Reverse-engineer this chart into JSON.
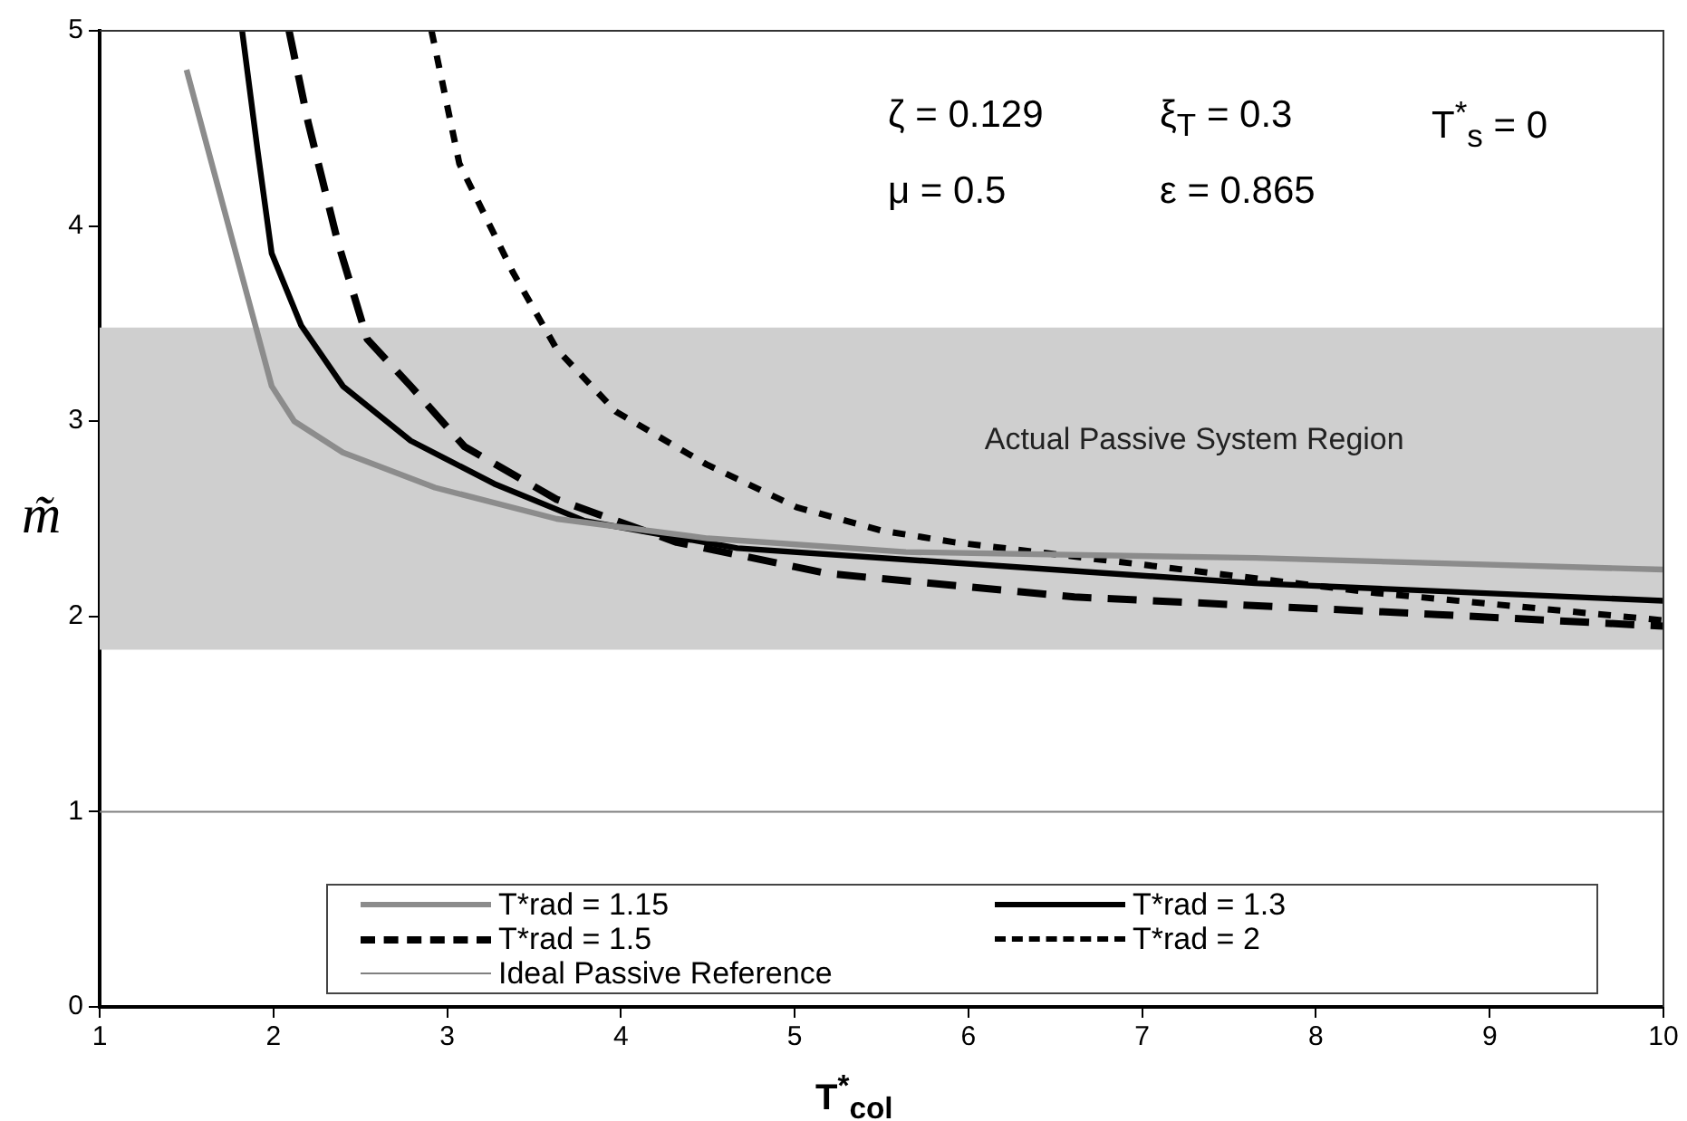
{
  "chart_data": {
    "type": "line",
    "xlabel": "T$^{*}$$_{col}$",
    "ylabel": "m̃",
    "xlim": [
      1,
      10
    ],
    "xticks": [
      1,
      2,
      3,
      4,
      5,
      6,
      7,
      8,
      9,
      10
    ],
    "ylim": [
      0,
      5
    ],
    "yticks": [
      0,
      1,
      2,
      3,
      4,
      5
    ],
    "grid": false,
    "legend": "bottom",
    "series": [
      {
        "name": "T*rad = 1.15",
        "color": "#8c8c8c",
        "line_style": "solid",
        "x": [
          1.5,
          1.99,
          2.12,
          2.4,
          2.93,
          3.63,
          4.5,
          5.64,
          7.65,
          10
        ],
        "values": [
          4.8,
          3.18,
          3.0,
          2.84,
          2.66,
          2.5,
          2.4,
          2.33,
          2.3,
          2.24
        ]
      },
      {
        "name": "T*rad = 1.3",
        "color": "#000000",
        "line_style": "solid",
        "x": [
          1.82,
          1.91,
          1.99,
          2.16,
          2.4,
          2.79,
          3.27,
          3.79,
          4.67,
          7.65,
          10
        ],
        "values": [
          5,
          4.38,
          3.86,
          3.49,
          3.18,
          2.9,
          2.68,
          2.49,
          2.35,
          2.17,
          2.08
        ]
      },
      {
        "name": "T*rad = 1.5",
        "color": "#000000",
        "line_style": "dashed",
        "x": [
          2.09,
          2.2,
          2.37,
          2.54,
          2.79,
          3.1,
          3.63,
          4.32,
          5.19,
          6.61,
          8.7,
          10
        ],
        "values": [
          5,
          4.53,
          3.92,
          3.42,
          3.18,
          2.87,
          2.6,
          2.38,
          2.22,
          2.1,
          2.01,
          1.95
        ]
      },
      {
        "name": "T*rad = 2",
        "color": "#000000",
        "line_style": "dotted",
        "x": [
          2.91,
          3.07,
          3.38,
          3.63,
          3.97,
          4.49,
          5.01,
          5.5,
          5.92,
          6.96,
          8.35,
          10
        ],
        "values": [
          5,
          4.32,
          3.76,
          3.37,
          3.05,
          2.78,
          2.56,
          2.44,
          2.38,
          2.27,
          2.12,
          1.98
        ]
      }
    ],
    "ref_lines": [
      {
        "axis": "y",
        "value": 1,
        "label": "Ideal Passive Reference",
        "color": "#808080"
      }
    ],
    "bands": [
      {
        "axis": "y",
        "from": 1.83,
        "to": 3.48,
        "label": "Actual Passive System Region",
        "color": "#cfcfcf"
      }
    ],
    "annotations": [
      "ζ = 0.129",
      "ξ$_{T}$ = 0.3",
      "T$^{*}$$_{s}$ = 0",
      "μ = 0.5",
      "ε = 0.865"
    ]
  }
}
